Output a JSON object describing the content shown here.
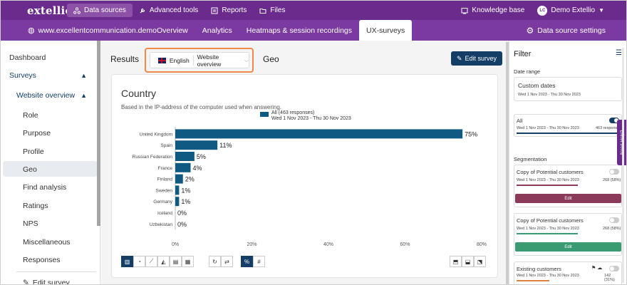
{
  "topbar": {
    "logo": "extellio",
    "nav": [
      {
        "label": "Data sources",
        "icon": "data-sources-icon",
        "active": true
      },
      {
        "label": "Advanced tools",
        "icon": "wrench-icon",
        "active": false
      },
      {
        "label": "Reports",
        "icon": "reports-icon",
        "active": false
      },
      {
        "label": "Files",
        "icon": "folder-icon",
        "active": false
      }
    ],
    "knowledge_base": "Knowledge base",
    "user_initials": "LC",
    "user_name": "Demo Extellio"
  },
  "subbar": {
    "site": "www.excellentcommunication.demo",
    "tabs": [
      "Overview",
      "Analytics",
      "Heatmaps & session recordings",
      "UX-surveys"
    ],
    "active_tab": "UX-surveys",
    "settings": "Data source settings"
  },
  "sidebar": {
    "items": [
      {
        "label": "Dashboard"
      },
      {
        "label": "Surveys"
      },
      {
        "label": "Website overview"
      },
      {
        "label": "Role"
      },
      {
        "label": "Purpose"
      },
      {
        "label": "Profile"
      },
      {
        "label": "Geo"
      },
      {
        "label": "Find analysis"
      },
      {
        "label": "Ratings"
      },
      {
        "label": "NPS"
      },
      {
        "label": "Miscellaneous"
      },
      {
        "label": "Responses"
      },
      {
        "label": "Edit survey"
      }
    ]
  },
  "main": {
    "results_label": "Results",
    "language": "English",
    "survey": "Website overview",
    "section": "Geo",
    "edit_button": "Edit survey",
    "card_title": "Country",
    "card_subtitle": "Based in the IP-address of the computer used when answering."
  },
  "chart_data": {
    "type": "bar",
    "orientation": "horizontal",
    "categories": [
      "United Kingdom",
      "Spain",
      "Russian Federation",
      "France",
      "Finland",
      "Sweden",
      "Germany",
      "Iceland",
      "Uzbekistan"
    ],
    "series": [
      {
        "name": "All (463 responses)",
        "subtitle": "Wed 1 Nov 2023 - Thu 30 Nov 2023",
        "values": [
          75,
          11,
          5,
          4,
          2,
          1,
          1,
          0,
          0
        ]
      }
    ],
    "value_labels": [
      "75%",
      "11%",
      "5%",
      "4%",
      "2%",
      "1%",
      "1%",
      "0%",
      "0%"
    ],
    "xticks": [
      "0%",
      "20%",
      "40%",
      "60%",
      "80%"
    ],
    "xlim": [
      0,
      80
    ],
    "color": "#0f5a82",
    "legend_position": "top"
  },
  "filter": {
    "title": "Filter",
    "date_range_label": "Date range",
    "date_range_value": "Custom dates",
    "date_range_dates": "Wed 1 Nov 2023 - Thu 30 Nov 2023",
    "all_label": "All",
    "all_dates": "Wed 1 Nov 2023 - Thu 30 Nov 2023",
    "all_count": "463 respons",
    "segmentation_label": "Segmentation",
    "segments": [
      {
        "name": "Copy of Potential customers",
        "dates": "Wed 1 Nov 2023 - Thu 30 Nov 2023",
        "count": "268 (58%)",
        "edit": "Edit",
        "color": "#8b3a5a"
      },
      {
        "name": "Copy of Potential customers",
        "dates": "Wed 1 Nov 2023 - Thu 30 Nov 2023",
        "count": "268 (58%)",
        "edit": "Edit",
        "color": "#3a9a72"
      },
      {
        "name": "Existing customers",
        "dates": "Wed 1 Nov 2023 - Thu 30 Nov 2023",
        "count": "142 (31%)",
        "color": "#e0823e"
      }
    ],
    "need_help": "Need Help?"
  }
}
